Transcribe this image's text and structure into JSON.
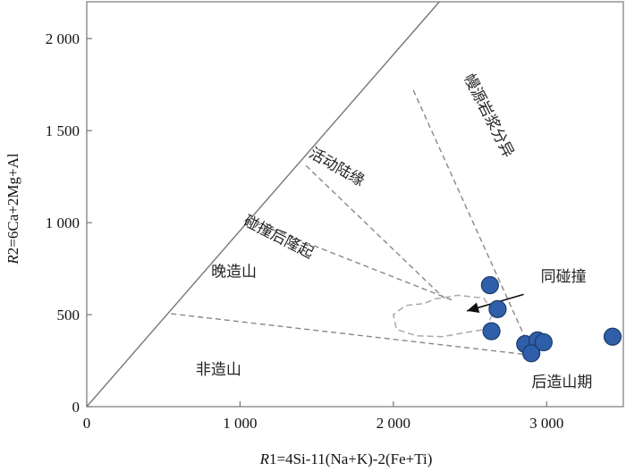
{
  "chart_data": {
    "type": "scatter",
    "title": "",
    "xlabel": {
      "italic": "R",
      "rest": "1=4Si-11(Na+K)-2(Fe+Ti)"
    },
    "ylabel": {
      "italic": "R",
      "rest": "2=6Ca+2Mg+Al"
    },
    "xlim": [
      0,
      3500
    ],
    "ylim": [
      0,
      2200
    ],
    "xticks": [
      0,
      1000,
      2000,
      3000
    ],
    "xtick_labels": [
      "0",
      "1 000",
      "2 000",
      "3 000"
    ],
    "yticks": [
      0,
      500,
      1000,
      1500,
      2000
    ],
    "ytick_labels": [
      "0",
      "500",
      "1 000",
      "1 500",
      "2 000"
    ],
    "grid": false,
    "legend": "none",
    "colors": {
      "point_fill": "#2f5fa8",
      "point_stroke": "#1c3a6e",
      "boundary": "#888888",
      "syn_collision_field": "#aaaaaa",
      "outline": "#777777"
    },
    "points": [
      [
        2630,
        660
      ],
      [
        2680,
        530
      ],
      [
        2640,
        410
      ],
      [
        2860,
        340
      ],
      [
        2940,
        360
      ],
      [
        2900,
        290
      ],
      [
        2980,
        350
      ],
      [
        3430,
        380
      ]
    ],
    "boundary_lines": [
      {
        "from": [
          0,
          0
        ],
        "to": [
          2300,
          2200
        ],
        "style": "solid"
      },
      {
        "from": [
          550,
          505
        ],
        "to": [
          2900,
          280
        ],
        "style": "dashed"
      },
      {
        "from": [
          1100,
          1000
        ],
        "to": [
          2380,
          580
        ],
        "style": "dashed"
      },
      {
        "from": [
          1430,
          1310
        ],
        "to": [
          2330,
          590
        ],
        "style": "dashed"
      },
      {
        "from": [
          2130,
          1720
        ],
        "to": [
          2900,
          300
        ],
        "style": "dashed"
      }
    ],
    "region_labels": [
      {
        "text": "幔源岩浆分异",
        "at": [
          2620,
          1580
        ],
        "rotate": 63
      },
      {
        "text": "活动陆缘",
        "at": [
          1630,
          1300
        ],
        "rotate": 30
      },
      {
        "text": "碰撞后隆起",
        "at": [
          1250,
          920
        ],
        "rotate": 27
      },
      {
        "text": "晚造山",
        "at": [
          960,
          730
        ],
        "rotate": 0
      },
      {
        "text": "非造山",
        "at": [
          860,
          200
        ],
        "rotate": 0
      },
      {
        "text": "后造山期",
        "at": [
          3100,
          130
        ],
        "rotate": 0
      }
    ],
    "syn_collision_field": {
      "label": "同碰撞",
      "label_at": [
        3110,
        680
      ],
      "arrow_from": [
        2850,
        610
      ],
      "arrow_to": [
        2480,
        520
      ],
      "outline": [
        [
          2270,
          585
        ],
        [
          2420,
          605
        ],
        [
          2590,
          590
        ],
        [
          2650,
          510
        ],
        [
          2600,
          420
        ],
        [
          2450,
          400
        ],
        [
          2320,
          380
        ],
        [
          2150,
          385
        ],
        [
          2020,
          420
        ],
        [
          2000,
          500
        ],
        [
          2080,
          550
        ],
        [
          2200,
          560
        ]
      ]
    }
  }
}
